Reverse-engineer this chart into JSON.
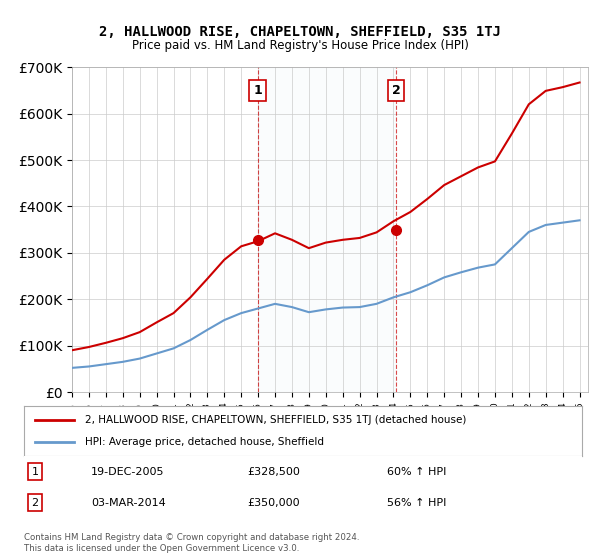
{
  "title": "2, HALLWOOD RISE, CHAPELTOWN, SHEFFIELD, S35 1TJ",
  "subtitle": "Price paid vs. HM Land Registry's House Price Index (HPI)",
  "legend_line1": "2, HALLWOOD RISE, CHAPELTOWN, SHEFFIELD, S35 1TJ (detached house)",
  "legend_line2": "HPI: Average price, detached house, Sheffield",
  "transaction1_date": "19-DEC-2005",
  "transaction1_price": "£328,500",
  "transaction1_hpi": "60% ↑ HPI",
  "transaction1_year": 2005.97,
  "transaction1_value": 328500,
  "transaction2_date": "03-MAR-2014",
  "transaction2_price": "£350,000",
  "transaction2_hpi": "56% ↑ HPI",
  "transaction2_year": 2014.17,
  "transaction2_value": 350000,
  "footer": "Contains HM Land Registry data © Crown copyright and database right 2024.\nThis data is licensed under the Open Government Licence v3.0.",
  "red_color": "#cc0000",
  "blue_color": "#6699cc",
  "vline_color": "#cc0000",
  "bg_color": "#dce9f5",
  "years": [
    1995,
    1996,
    1997,
    1998,
    1999,
    2000,
    2001,
    2002,
    2003,
    2004,
    2005,
    2006,
    2007,
    2008,
    2009,
    2010,
    2011,
    2012,
    2013,
    2014,
    2015,
    2016,
    2017,
    2018,
    2019,
    2020,
    2021,
    2022,
    2023,
    2024,
    2025
  ],
  "hpi_sheffield": [
    52000,
    55000,
    60000,
    65000,
    72000,
    83000,
    94000,
    112000,
    134000,
    155000,
    170000,
    180000,
    190000,
    183000,
    172000,
    178000,
    182000,
    183000,
    190000,
    204000,
    215000,
    230000,
    247000,
    258000,
    268000,
    275000,
    310000,
    345000,
    360000,
    365000,
    370000
  ],
  "red_hpi": [
    90000,
    97000,
    106000,
    116000,
    129000,
    150000,
    170000,
    204000,
    244000,
    285000,
    314000,
    325000,
    342000,
    328000,
    310000,
    322000,
    328000,
    332000,
    344000,
    368000,
    388000,
    416000,
    446000,
    465000,
    484000,
    497000,
    557000,
    620000,
    649000,
    657000,
    667000
  ]
}
